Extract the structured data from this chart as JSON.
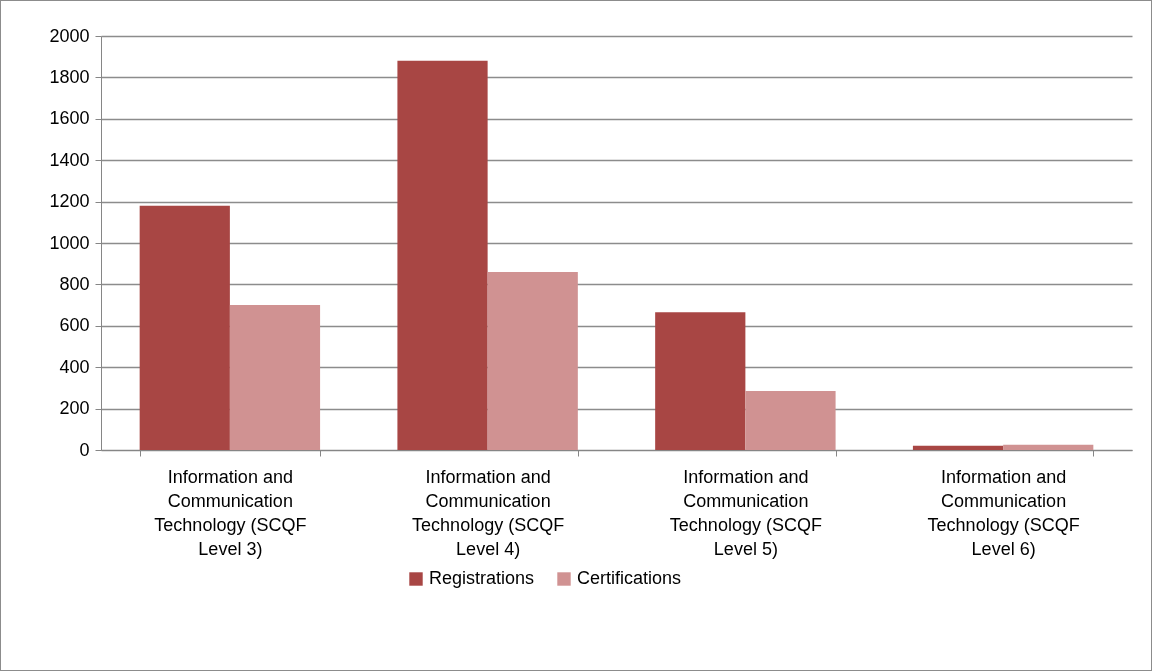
{
  "chart_data": {
    "type": "bar",
    "categories": [
      "Information and Communication Technology (SCQF Level 3)",
      "Information and Communication Technology (SCQF Level 4)",
      "Information and Communication Technology (SCQF Level 5)",
      "Information and Communication Technology (SCQF Level 6)"
    ],
    "series": [
      {
        "name": "Registrations",
        "color": "#a84644",
        "values": [
          1180,
          1880,
          665,
          20
        ]
      },
      {
        "name": "Certifications",
        "color": "#d09292",
        "values": [
          700,
          860,
          285,
          25
        ]
      }
    ],
    "ylim": [
      0,
      2000
    ],
    "yticks": [
      0,
      200,
      400,
      600,
      800,
      1000,
      1200,
      1400,
      1600,
      1800,
      2000
    ],
    "grid": "y",
    "legend": "bottom"
  }
}
